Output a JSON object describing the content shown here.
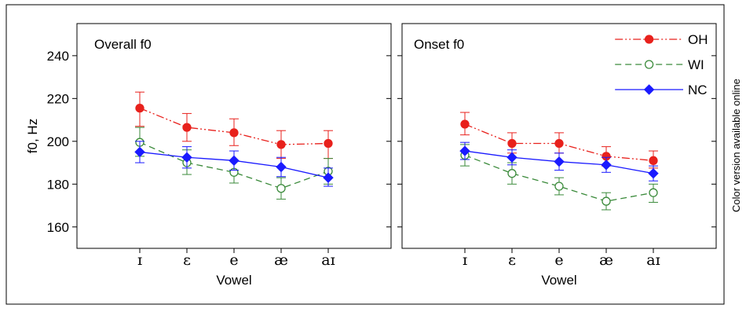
{
  "side_note": "Color version available online",
  "colors": {
    "OH": "#e8211c",
    "WI": "#3a8a3a",
    "NC": "#1a1aff"
  },
  "chart_data": [
    {
      "type": "line",
      "title": "Overall f0",
      "xlabel": "Vowel",
      "ylabel": "f0, Hz",
      "categories": [
        "ɪ",
        "ɛ",
        "e",
        "æ",
        "aɪ"
      ],
      "ylim": [
        150,
        255
      ],
      "yticks": [
        160,
        180,
        200,
        220,
        240
      ],
      "grid": false,
      "series": [
        {
          "name": "OH",
          "values": [
            215.5,
            206.5,
            204,
            198.5,
            199
          ],
          "err_lo": [
            207,
            200,
            198,
            192,
            192
          ],
          "err_hi": [
            223,
            213,
            210.5,
            205,
            205
          ]
        },
        {
          "name": "WI",
          "values": [
            199.5,
            190,
            185.5,
            178,
            186
          ],
          "err_lo": [
            193,
            184.5,
            180.5,
            173,
            180
          ],
          "err_hi": [
            206.5,
            196,
            191,
            183,
            192
          ]
        },
        {
          "name": "NC",
          "values": [
            195,
            192.5,
            191,
            188,
            183
          ],
          "err_lo": [
            190,
            187.5,
            186.5,
            183.5,
            179
          ],
          "err_hi": [
            200,
            197.5,
            195.5,
            192.5,
            187.5
          ]
        }
      ]
    },
    {
      "type": "line",
      "title": "Onset f0",
      "xlabel": "Vowel",
      "ylabel": "",
      "categories": [
        "ɪ",
        "ɛ",
        "e",
        "æ",
        "aɪ"
      ],
      "ylim": [
        150,
        255
      ],
      "yticks": [
        160,
        180,
        200,
        220,
        240
      ],
      "grid": false,
      "legend": "top-right",
      "series": [
        {
          "name": "OH",
          "values": [
            208,
            199,
            199,
            193,
            191
          ],
          "err_lo": [
            203,
            194.5,
            194.5,
            188.5,
            187.5
          ],
          "err_hi": [
            213.5,
            204,
            204,
            197.5,
            195.5
          ]
        },
        {
          "name": "WI",
          "values": [
            193.5,
            185,
            179,
            172,
            176
          ],
          "err_lo": [
            188.5,
            180,
            175,
            168,
            171.5
          ],
          "err_hi": [
            198.5,
            190,
            183,
            176,
            180
          ]
        },
        {
          "name": "NC",
          "values": [
            195.5,
            192.5,
            190.5,
            189,
            185
          ],
          "err_lo": [
            191.5,
            189,
            186.5,
            185.5,
            181.5
          ],
          "err_hi": [
            199.5,
            196,
            194.5,
            192.5,
            188.5
          ]
        }
      ]
    }
  ]
}
